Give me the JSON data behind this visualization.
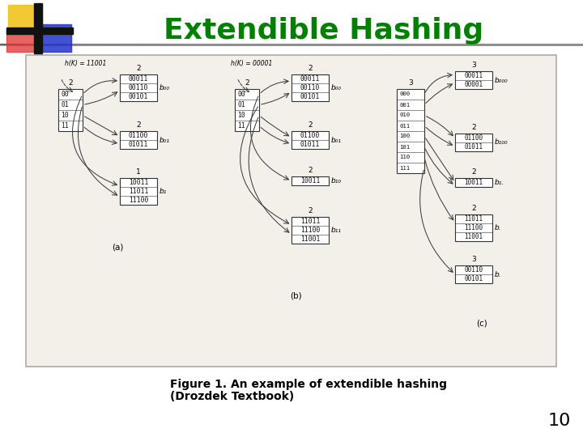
{
  "title": "Extendible Hashing",
  "title_color": "#008000",
  "title_fontsize": 26,
  "title_fontweight": "bold",
  "title_fontstyle": "normal",
  "background_color": "#ffffff",
  "caption_line1": "Figure 1. An example of extendible hashing",
  "caption_line2": "(Drozdek Textbook)",
  "caption_fontsize": 10,
  "caption_fontweight": "bold",
  "page_number": "10",
  "page_number_fontsize": 16,
  "cross_yellow": "#f0c010",
  "cross_red": "#e03030",
  "cross_blue": "#2233cc",
  "cross_dark": "#111111",
  "diagram_bg": "#f2f0e8",
  "diagram_border": "#aaaaaa",
  "box_bg": "#ffffff",
  "box_edge": "#333333",
  "text_color": "#111111",
  "arrow_color": "#333333",
  "header_line_start": "#555555",
  "header_line_end": "#dddddd"
}
